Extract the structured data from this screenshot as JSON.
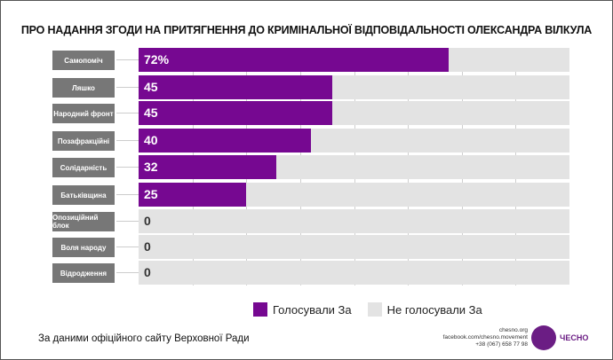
{
  "chart_data": {
    "type": "bar",
    "orientation": "horizontal",
    "stacked_to": 100,
    "title": "ПРО НАДАННЯ ЗГОДИ НА ПРИТЯГНЕННЯ ДО КРИМІНАЛЬНОЇ ВІДПОВІДАЛЬНОСТІ ОЛЕКСАНДРА ВІЛКУЛА",
    "categories": [
      "Самопоміч",
      "Ляшко",
      "Народний фронт",
      "Позафракційні",
      "Солідарність",
      "Батьківщина",
      "Опозиційний блок",
      "Воля народу",
      "Відродження"
    ],
    "values": [
      72,
      45,
      45,
      40,
      32,
      25,
      0,
      0,
      0
    ],
    "value_labels": [
      "72%",
      "45",
      "45",
      "40",
      "32",
      "25",
      "0",
      "0",
      "0"
    ],
    "xlim": [
      0,
      100
    ],
    "grid": true,
    "legend_position": "bottom",
    "series": [
      {
        "name": "Голосували За",
        "color": "#760891"
      },
      {
        "name": "Не голосували За",
        "color": "#e3e3e3"
      }
    ]
  },
  "footer": {
    "source": "За даними офіційного сайту Верховної Ради",
    "contacts": [
      "chesno.org",
      "facebook.com/chesno.movement",
      "+38 (067) 658 77 98"
    ],
    "brand": "ЧЕСНО"
  }
}
